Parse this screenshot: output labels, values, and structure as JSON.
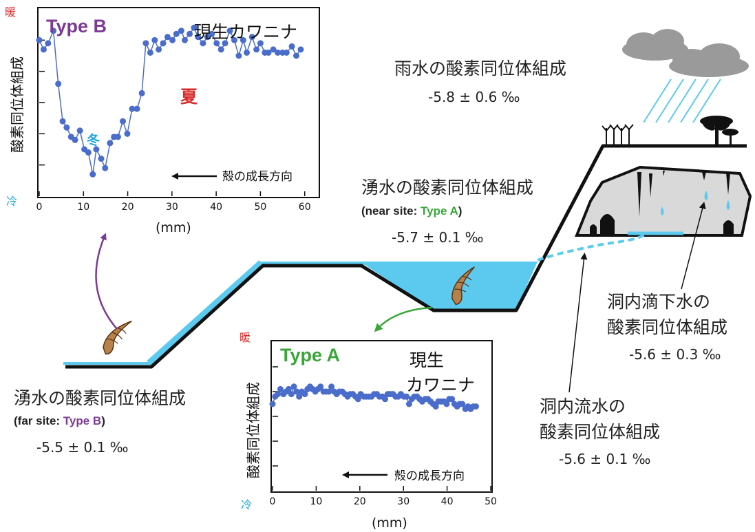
{
  "colors": {
    "water": "#5ccaef",
    "point": "#4a6ccb",
    "purple": "#7c3a94",
    "green": "#3aa63a",
    "warm": "#d92b2b",
    "cold": "#1aa5e0",
    "shell": "#b8804a"
  },
  "chart_data": [
    {
      "type": "line",
      "tag": "Type B",
      "species": "現生カワニナ",
      "ylabel": "酸素同位体組成",
      "y_top_label": "暖",
      "y_bottom_label": "冷",
      "xlabel": "(mm)",
      "xticks": [
        0,
        10,
        20,
        30,
        40,
        50,
        60
      ],
      "xlim": [
        0,
        63
      ],
      "ylim": [
        0,
        6
      ],
      "growth_label": "殻の成長方向",
      "summer_label": "夏",
      "winter_label": "冬",
      "x": [
        0,
        1,
        2,
        3.2,
        4.3,
        5.3,
        6.2,
        7.2,
        8.1,
        9.2,
        10.2,
        11.1,
        12.1,
        12.9,
        14,
        14.9,
        16,
        16.9,
        17.8,
        18.9,
        19.9,
        21,
        22.1,
        23.2,
        24.1,
        25.1,
        26.1,
        27,
        28,
        29,
        30.1,
        31,
        32.1,
        32.9,
        34,
        35,
        35.9,
        37,
        38,
        39,
        40.1,
        41.1,
        42,
        43.1,
        44.1,
        45.1,
        46.1,
        46.9,
        48.1,
        49.1,
        50,
        51,
        51.8,
        52.9,
        53.9,
        55,
        55.9,
        57.1,
        58.1,
        59.1
      ],
      "y": [
        5.0,
        4.7,
        4.9,
        5.3,
        3.6,
        2.4,
        2.2,
        1.9,
        1.8,
        2.1,
        1.5,
        1.4,
        0.7,
        1.5,
        1.2,
        0.9,
        1.7,
        1.9,
        1.9,
        2.4,
        2.0,
        2.8,
        2.8,
        3.3,
        4.9,
        4.6,
        5.0,
        4.7,
        4.9,
        5.1,
        5.0,
        5.2,
        5.3,
        5.0,
        5.2,
        5.4,
        5.1,
        4.9,
        5.1,
        5.2,
        4.9,
        4.7,
        4.9,
        5.3,
        5.0,
        4.5,
        5.0,
        4.6,
        5.1,
        4.7,
        4.9,
        4.6,
        4.6,
        4.7,
        4.6,
        4.6,
        4.6,
        4.8,
        4.5,
        4.7
      ]
    },
    {
      "type": "line",
      "tag": "Type A",
      "species_line1": "現生",
      "species_line2": "カワニナ",
      "ylabel": "酸素同位体組成",
      "y_top_label": "暖",
      "y_bottom_label": "冷",
      "xlabel": "(mm)",
      "xticks": [
        0,
        10,
        20,
        30,
        40,
        50
      ],
      "xlim": [
        0,
        50
      ],
      "ylim": [
        0,
        6
      ],
      "growth_label": "殻の成長方向",
      "x": [
        0,
        0.6,
        1.2,
        1.8,
        2.5,
        3.1,
        3.7,
        4.3,
        4.9,
        5.5,
        6.1,
        6.7,
        7.4,
        8,
        8.6,
        9.2,
        9.8,
        10.4,
        11,
        11.7,
        12.3,
        12.9,
        13.5,
        14.1,
        14.7,
        15.3,
        16,
        16.6,
        17.2,
        17.8,
        18.4,
        19,
        19.6,
        20.2,
        20.9,
        21.5,
        22.1,
        22.7,
        23.3,
        23.9,
        24.5,
        25.2,
        25.8,
        26.4,
        27,
        27.6,
        28.2,
        28.8,
        29.4,
        30.1,
        30.7,
        31.3,
        31.9,
        32.5,
        33.1,
        33.7,
        34.3,
        35,
        35.6,
        36.2,
        36.8,
        37.4,
        38,
        38.6,
        39.3,
        39.9,
        40.5,
        41.1,
        41.7,
        42.3,
        42.9,
        43.5,
        44.2,
        44.8,
        45.4,
        46,
        46.6
      ],
      "y": [
        3.5,
        3.8,
        3.9,
        4.1,
        3.9,
        4.0,
        4.1,
        3.9,
        4.2,
        4.0,
        3.8,
        4.0,
        3.9,
        4.1,
        4.2,
        4.1,
        4.0,
        4.1,
        4.2,
        4.0,
        4.0,
        4.0,
        4.2,
        4.0,
        3.9,
        4.0,
        4.0,
        3.9,
        3.8,
        3.9,
        3.9,
        3.8,
        3.7,
        3.9,
        3.8,
        3.8,
        3.8,
        3.8,
        3.9,
        3.9,
        3.8,
        3.8,
        3.7,
        3.9,
        3.9,
        3.9,
        3.8,
        3.8,
        3.9,
        3.8,
        3.8,
        3.5,
        3.7,
        3.8,
        3.8,
        3.7,
        3.6,
        3.7,
        3.7,
        3.6,
        3.5,
        3.4,
        3.6,
        3.6,
        3.6,
        3.5,
        3.7,
        3.7,
        3.5,
        3.4,
        3.5,
        3.5,
        3.3,
        3.4,
        3.3,
        3.4,
        3.4
      ]
    }
  ],
  "labels": {
    "rain_title": "雨水の酸素同位体組成",
    "rain_value": "-5.8 ± 0.6 ‰",
    "spring_near_title": "湧水の酸素同位体組成",
    "spring_near_site_prefix": "(near site: ",
    "spring_near_site_type": "Type A",
    "spring_near_site_suffix": ")",
    "spring_near_value": "-5.7 ± 0.1 ‰",
    "spring_far_title": "湧水の酸素同位体組成",
    "spring_far_site_prefix": "(far site: ",
    "spring_far_site_type": "Type B",
    "spring_far_site_suffix": ")",
    "spring_far_value": "-5.5 ± 0.1 ‰",
    "drip_title_1": "洞内滴下水の",
    "drip_title_2": "酸素同位体組成",
    "drip_value": "-5.6 ± 0.3 ‰",
    "stream_title_1": "洞内流水の",
    "stream_title_2": "酸素同位体組成",
    "stream_value": "-5.6 ± 0.1 ‰"
  }
}
